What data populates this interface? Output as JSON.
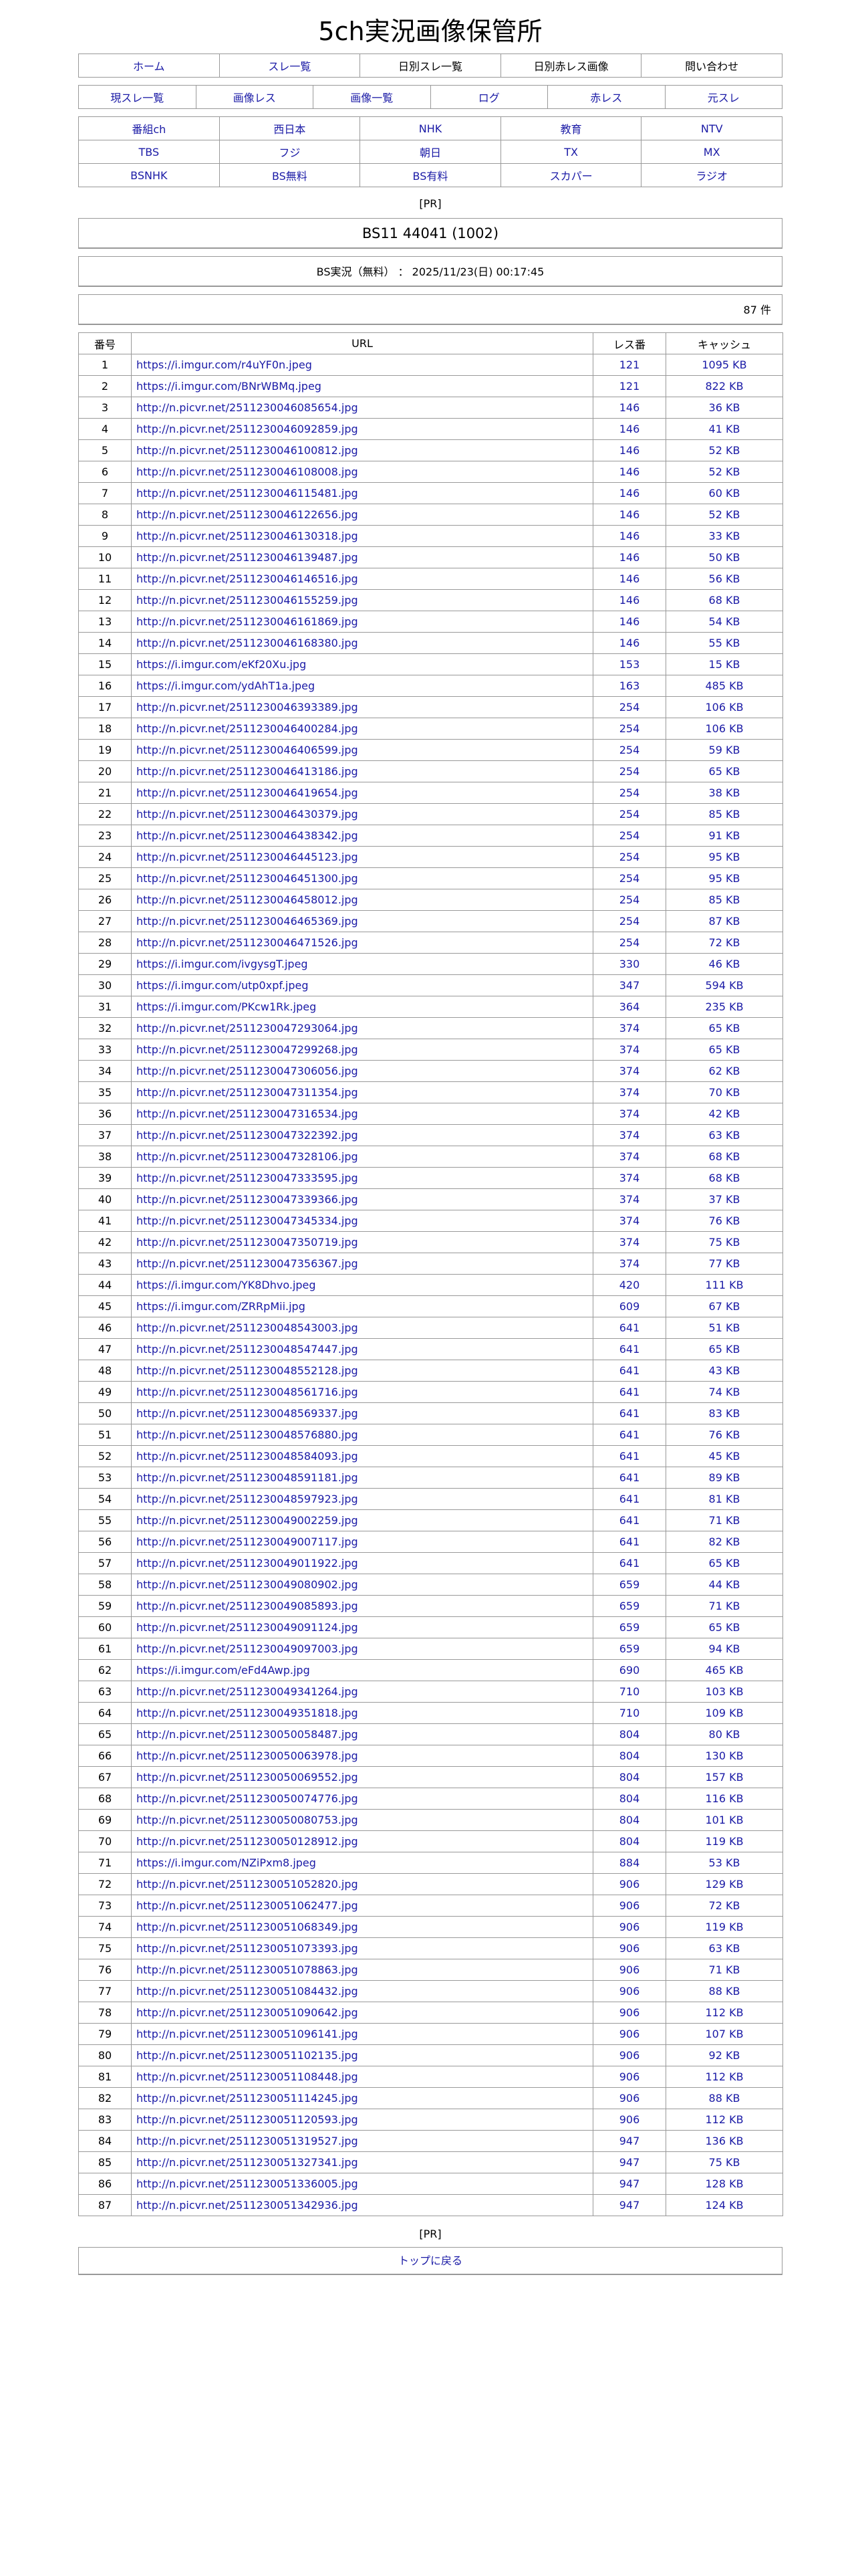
{
  "site_title": "5ch実況画像保管所",
  "nav1": [
    {
      "label": "ホーム",
      "link": true
    },
    {
      "label": "スレ一覧",
      "link": true
    },
    {
      "label": "日別スレ一覧",
      "link": false
    },
    {
      "label": "日別赤レス画像",
      "link": false
    },
    {
      "label": "問い合わせ",
      "link": false
    }
  ],
  "nav2": [
    "現スレ一覧",
    "画像レス",
    "画像一覧",
    "ログ",
    "赤レス",
    "元スレ"
  ],
  "channels": [
    [
      "番組ch",
      "西日本",
      "NHK",
      "教育",
      "NTV"
    ],
    [
      "TBS",
      "フジ",
      "朝日",
      "TX",
      "MX"
    ],
    [
      "BSNHK",
      "BS無料",
      "BS有料",
      "スカパー",
      "ラジオ"
    ]
  ],
  "pr_label": "[PR]",
  "thread_title": "BS11 44041 (1002)",
  "thread_info": "BS実況（無料） ： 2025/11/23(日) 00:17:45",
  "count_label": "87 件",
  "table": {
    "headers": [
      "番号",
      "URL",
      "レス番",
      "キャッシュ"
    ],
    "rows": [
      [
        "1",
        "https://i.imgur.com/r4uYF0n.jpeg",
        "121",
        "1095 KB"
      ],
      [
        "2",
        "https://i.imgur.com/BNrWBMq.jpeg",
        "121",
        "822 KB"
      ],
      [
        "3",
        "http://n.picvr.net/2511230046085654.jpg",
        "146",
        "36 KB"
      ],
      [
        "4",
        "http://n.picvr.net/2511230046092859.jpg",
        "146",
        "41 KB"
      ],
      [
        "5",
        "http://n.picvr.net/2511230046100812.jpg",
        "146",
        "52 KB"
      ],
      [
        "6",
        "http://n.picvr.net/2511230046108008.jpg",
        "146",
        "52 KB"
      ],
      [
        "7",
        "http://n.picvr.net/2511230046115481.jpg",
        "146",
        "60 KB"
      ],
      [
        "8",
        "http://n.picvr.net/2511230046122656.jpg",
        "146",
        "52 KB"
      ],
      [
        "9",
        "http://n.picvr.net/2511230046130318.jpg",
        "146",
        "33 KB"
      ],
      [
        "10",
        "http://n.picvr.net/2511230046139487.jpg",
        "146",
        "50 KB"
      ],
      [
        "11",
        "http://n.picvr.net/2511230046146516.jpg",
        "146",
        "56 KB"
      ],
      [
        "12",
        "http://n.picvr.net/2511230046155259.jpg",
        "146",
        "68 KB"
      ],
      [
        "13",
        "http://n.picvr.net/2511230046161869.jpg",
        "146",
        "54 KB"
      ],
      [
        "14",
        "http://n.picvr.net/2511230046168380.jpg",
        "146",
        "55 KB"
      ],
      [
        "15",
        "https://i.imgur.com/eKf20Xu.jpg",
        "153",
        "15 KB"
      ],
      [
        "16",
        "https://i.imgur.com/ydAhT1a.jpeg",
        "163",
        "485 KB"
      ],
      [
        "17",
        "http://n.picvr.net/2511230046393389.jpg",
        "254",
        "106 KB"
      ],
      [
        "18",
        "http://n.picvr.net/2511230046400284.jpg",
        "254",
        "106 KB"
      ],
      [
        "19",
        "http://n.picvr.net/2511230046406599.jpg",
        "254",
        "59 KB"
      ],
      [
        "20",
        "http://n.picvr.net/2511230046413186.jpg",
        "254",
        "65 KB"
      ],
      [
        "21",
        "http://n.picvr.net/2511230046419654.jpg",
        "254",
        "38 KB"
      ],
      [
        "22",
        "http://n.picvr.net/2511230046430379.jpg",
        "254",
        "85 KB"
      ],
      [
        "23",
        "http://n.picvr.net/2511230046438342.jpg",
        "254",
        "91 KB"
      ],
      [
        "24",
        "http://n.picvr.net/2511230046445123.jpg",
        "254",
        "95 KB"
      ],
      [
        "25",
        "http://n.picvr.net/2511230046451300.jpg",
        "254",
        "95 KB"
      ],
      [
        "26",
        "http://n.picvr.net/2511230046458012.jpg",
        "254",
        "85 KB"
      ],
      [
        "27",
        "http://n.picvr.net/2511230046465369.jpg",
        "254",
        "87 KB"
      ],
      [
        "28",
        "http://n.picvr.net/2511230046471526.jpg",
        "254",
        "72 KB"
      ],
      [
        "29",
        "https://i.imgur.com/ivgysgT.jpeg",
        "330",
        "46 KB"
      ],
      [
        "30",
        "https://i.imgur.com/utp0xpf.jpeg",
        "347",
        "594 KB"
      ],
      [
        "31",
        "https://i.imgur.com/PKcw1Rk.jpeg",
        "364",
        "235 KB"
      ],
      [
        "32",
        "http://n.picvr.net/2511230047293064.jpg",
        "374",
        "65 KB"
      ],
      [
        "33",
        "http://n.picvr.net/2511230047299268.jpg",
        "374",
        "65 KB"
      ],
      [
        "34",
        "http://n.picvr.net/2511230047306056.jpg",
        "374",
        "62 KB"
      ],
      [
        "35",
        "http://n.picvr.net/2511230047311354.jpg",
        "374",
        "70 KB"
      ],
      [
        "36",
        "http://n.picvr.net/2511230047316534.jpg",
        "374",
        "42 KB"
      ],
      [
        "37",
        "http://n.picvr.net/2511230047322392.jpg",
        "374",
        "63 KB"
      ],
      [
        "38",
        "http://n.picvr.net/2511230047328106.jpg",
        "374",
        "68 KB"
      ],
      [
        "39",
        "http://n.picvr.net/2511230047333595.jpg",
        "374",
        "68 KB"
      ],
      [
        "40",
        "http://n.picvr.net/2511230047339366.jpg",
        "374",
        "37 KB"
      ],
      [
        "41",
        "http://n.picvr.net/2511230047345334.jpg",
        "374",
        "76 KB"
      ],
      [
        "42",
        "http://n.picvr.net/2511230047350719.jpg",
        "374",
        "75 KB"
      ],
      [
        "43",
        "http://n.picvr.net/2511230047356367.jpg",
        "374",
        "77 KB"
      ],
      [
        "44",
        "https://i.imgur.com/YK8Dhvo.jpeg",
        "420",
        "111 KB"
      ],
      [
        "45",
        "https://i.imgur.com/ZRRpMii.jpg",
        "609",
        "67 KB"
      ],
      [
        "46",
        "http://n.picvr.net/2511230048543003.jpg",
        "641",
        "51 KB"
      ],
      [
        "47",
        "http://n.picvr.net/2511230048547447.jpg",
        "641",
        "65 KB"
      ],
      [
        "48",
        "http://n.picvr.net/2511230048552128.jpg",
        "641",
        "43 KB"
      ],
      [
        "49",
        "http://n.picvr.net/2511230048561716.jpg",
        "641",
        "74 KB"
      ],
      [
        "50",
        "http://n.picvr.net/2511230048569337.jpg",
        "641",
        "83 KB"
      ],
      [
        "51",
        "http://n.picvr.net/2511230048576880.jpg",
        "641",
        "76 KB"
      ],
      [
        "52",
        "http://n.picvr.net/2511230048584093.jpg",
        "641",
        "45 KB"
      ],
      [
        "53",
        "http://n.picvr.net/2511230048591181.jpg",
        "641",
        "89 KB"
      ],
      [
        "54",
        "http://n.picvr.net/2511230048597923.jpg",
        "641",
        "81 KB"
      ],
      [
        "55",
        "http://n.picvr.net/2511230049002259.jpg",
        "641",
        "71 KB"
      ],
      [
        "56",
        "http://n.picvr.net/2511230049007117.jpg",
        "641",
        "82 KB"
      ],
      [
        "57",
        "http://n.picvr.net/2511230049011922.jpg",
        "641",
        "65 KB"
      ],
      [
        "58",
        "http://n.picvr.net/2511230049080902.jpg",
        "659",
        "44 KB"
      ],
      [
        "59",
        "http://n.picvr.net/2511230049085893.jpg",
        "659",
        "71 KB"
      ],
      [
        "60",
        "http://n.picvr.net/2511230049091124.jpg",
        "659",
        "65 KB"
      ],
      [
        "61",
        "http://n.picvr.net/2511230049097003.jpg",
        "659",
        "94 KB"
      ],
      [
        "62",
        "https://i.imgur.com/eFd4Awp.jpg",
        "690",
        "465 KB"
      ],
      [
        "63",
        "http://n.picvr.net/2511230049341264.jpg",
        "710",
        "103 KB"
      ],
      [
        "64",
        "http://n.picvr.net/2511230049351818.jpg",
        "710",
        "109 KB"
      ],
      [
        "65",
        "http://n.picvr.net/2511230050058487.jpg",
        "804",
        "80 KB"
      ],
      [
        "66",
        "http://n.picvr.net/2511230050063978.jpg",
        "804",
        "130 KB"
      ],
      [
        "67",
        "http://n.picvr.net/2511230050069552.jpg",
        "804",
        "157 KB"
      ],
      [
        "68",
        "http://n.picvr.net/2511230050074776.jpg",
        "804",
        "116 KB"
      ],
      [
        "69",
        "http://n.picvr.net/2511230050080753.jpg",
        "804",
        "101 KB"
      ],
      [
        "70",
        "http://n.picvr.net/2511230050128912.jpg",
        "804",
        "119 KB"
      ],
      [
        "71",
        "https://i.imgur.com/NZiPxm8.jpeg",
        "884",
        "53 KB"
      ],
      [
        "72",
        "http://n.picvr.net/2511230051052820.jpg",
        "906",
        "129 KB"
      ],
      [
        "73",
        "http://n.picvr.net/2511230051062477.jpg",
        "906",
        "72 KB"
      ],
      [
        "74",
        "http://n.picvr.net/2511230051068349.jpg",
        "906",
        "119 KB"
      ],
      [
        "75",
        "http://n.picvr.net/2511230051073393.jpg",
        "906",
        "63 KB"
      ],
      [
        "76",
        "http://n.picvr.net/2511230051078863.jpg",
        "906",
        "71 KB"
      ],
      [
        "77",
        "http://n.picvr.net/2511230051084432.jpg",
        "906",
        "88 KB"
      ],
      [
        "78",
        "http://n.picvr.net/2511230051090642.jpg",
        "906",
        "112 KB"
      ],
      [
        "79",
        "http://n.picvr.net/2511230051096141.jpg",
        "906",
        "107 KB"
      ],
      [
        "80",
        "http://n.picvr.net/2511230051102135.jpg",
        "906",
        "92 KB"
      ],
      [
        "81",
        "http://n.picvr.net/2511230051108448.jpg",
        "906",
        "112 KB"
      ],
      [
        "82",
        "http://n.picvr.net/2511230051114245.jpg",
        "906",
        "88 KB"
      ],
      [
        "83",
        "http://n.picvr.net/2511230051120593.jpg",
        "906",
        "112 KB"
      ],
      [
        "84",
        "http://n.picvr.net/2511230051319527.jpg",
        "947",
        "136 KB"
      ],
      [
        "85",
        "http://n.picvr.net/2511230051327341.jpg",
        "947",
        "75 KB"
      ],
      [
        "86",
        "http://n.picvr.net/2511230051336005.jpg",
        "947",
        "128 KB"
      ],
      [
        "87",
        "http://n.picvr.net/2511230051342936.jpg",
        "947",
        "124 KB"
      ]
    ]
  },
  "bottom_pr_label": "[PR]",
  "back_to_top": "トップに戻る",
  "colors": {
    "link": "#1a1aa6",
    "border": "#999999"
  }
}
